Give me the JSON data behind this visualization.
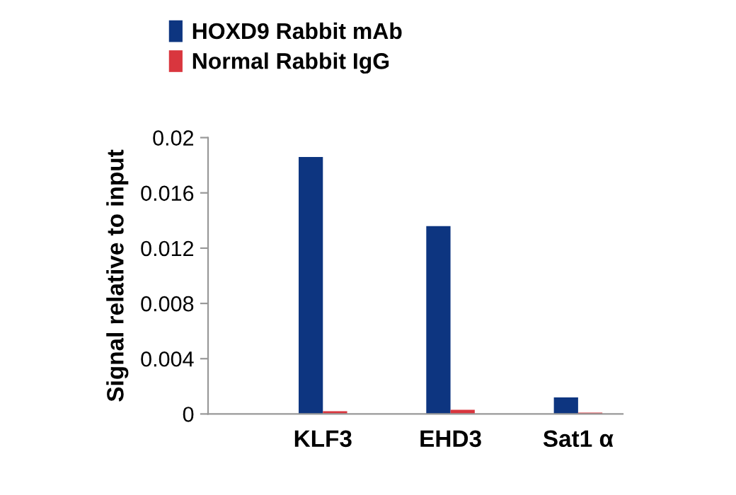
{
  "chart_data": {
    "type": "bar",
    "ylabel": "Signal relative to input",
    "categories": [
      "KLF3",
      "EHD3",
      "Sat1 α"
    ],
    "series": [
      {
        "name": "HOXD9 Rabbit mAb",
        "color": "#0d3580",
        "values": [
          0.0186,
          0.0136,
          0.0012
        ]
      },
      {
        "name": "Normal Rabbit IgG",
        "color": "#d9363e",
        "values": [
          0.0002,
          0.0003,
          0.0001
        ]
      }
    ],
    "ylim": [
      0,
      0.02
    ],
    "yticks": [
      0,
      0.004,
      0.008,
      0.012,
      0.016,
      0.02
    ],
    "grid": false,
    "legend": "top"
  }
}
